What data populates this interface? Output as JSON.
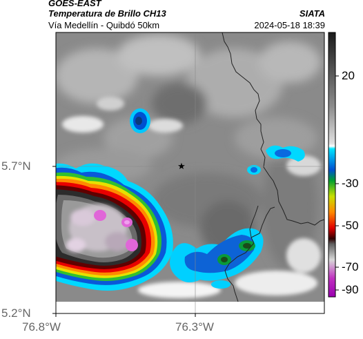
{
  "header": {
    "satellite": "GOES-EAST",
    "product": "Temperatura de Brillo CH13",
    "region": "Vía Medellín - Quibdó 50km",
    "agency": "SIATA",
    "datetime": "2024-05-18 18:39"
  },
  "axes": {
    "lat_labels": [
      "5.7°N",
      "5.2°N"
    ],
    "lon_labels": [
      "76.8°W",
      "76.3°W"
    ]
  },
  "colorbar": {
    "ticks": [
      "20",
      "-30",
      "-50",
      "-70",
      "-90"
    ],
    "tick_values": [
      20,
      -30,
      -50,
      -70,
      -90
    ],
    "range": [
      -95,
      35
    ]
  },
  "map": {
    "marker_icon": "star-icon",
    "layers": [
      "cloud-top-temperature",
      "administrative-borders",
      "gridlines"
    ]
  }
}
